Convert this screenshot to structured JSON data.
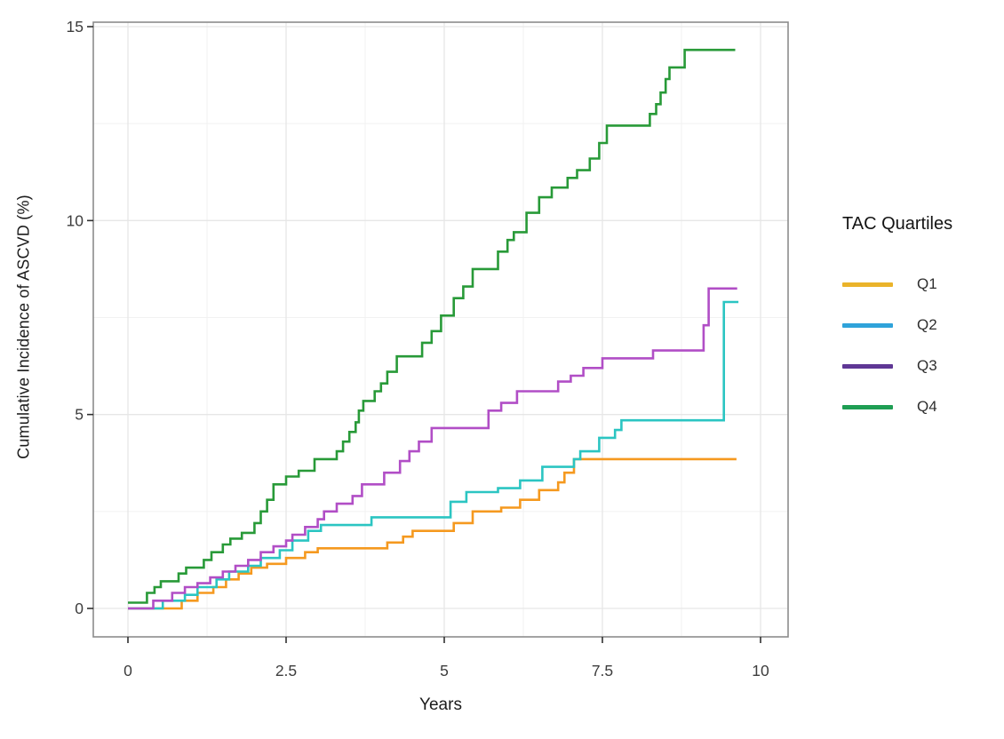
{
  "chart_data": {
    "type": "line",
    "subtype": "step",
    "title": "",
    "xlabel": "Years",
    "ylabel": "Cumulative Incidence of ASCVD (%)",
    "xlim": [
      0,
      10
    ],
    "ylim": [
      0,
      15
    ],
    "x_ticks": [
      0,
      2.5,
      5,
      7.5,
      10
    ],
    "x_tick_labels": [
      "0",
      "2.5",
      "5",
      "7.5",
      "10"
    ],
    "y_ticks": [
      0,
      5,
      10,
      15
    ],
    "y_tick_labels": [
      "0",
      "5",
      "10",
      "15"
    ],
    "x_minor_ticks": [
      1.25,
      3.75,
      6.25,
      8.75
    ],
    "y_minor_ticks": [
      2.5,
      7.5,
      12.5
    ],
    "grid": true,
    "panel_border_color": "#8c8c8c",
    "major_grid_color": "#e6e6e6",
    "minor_grid_color": "#f1f1f1",
    "tick_color": "#2f2f2f",
    "tick_label_color": "#3d3d3d",
    "legend": {
      "title": "TAC Quartiles",
      "position": "right"
    },
    "series": [
      {
        "name": "Q1",
        "color": "#f5991f",
        "legend_color": "#eab32a",
        "points": [
          [
            0,
            0
          ],
          [
            0.85,
            0.2
          ],
          [
            1.1,
            0.4
          ],
          [
            1.35,
            0.55
          ],
          [
            1.55,
            0.75
          ],
          [
            1.75,
            0.9
          ],
          [
            1.95,
            1.05
          ],
          [
            2.2,
            1.15
          ],
          [
            2.5,
            1.3
          ],
          [
            2.8,
            1.45
          ],
          [
            3.0,
            1.55
          ],
          [
            4.1,
            1.7
          ],
          [
            4.35,
            1.85
          ],
          [
            4.5,
            2.0
          ],
          [
            5.15,
            2.2
          ],
          [
            5.45,
            2.5
          ],
          [
            5.9,
            2.6
          ],
          [
            6.2,
            2.8
          ],
          [
            6.5,
            3.05
          ],
          [
            6.8,
            3.25
          ],
          [
            6.9,
            3.5
          ],
          [
            7.05,
            3.85
          ],
          [
            9.62,
            3.85
          ]
        ]
      },
      {
        "name": "Q2",
        "color": "#2bc5c2",
        "legend_color": "#2fa3da",
        "points": [
          [
            0,
            0
          ],
          [
            0.55,
            0.2
          ],
          [
            0.9,
            0.35
          ],
          [
            1.1,
            0.55
          ],
          [
            1.4,
            0.75
          ],
          [
            1.6,
            0.95
          ],
          [
            1.9,
            1.1
          ],
          [
            2.1,
            1.3
          ],
          [
            2.4,
            1.5
          ],
          [
            2.6,
            1.75
          ],
          [
            2.85,
            2.0
          ],
          [
            3.05,
            2.15
          ],
          [
            3.85,
            2.35
          ],
          [
            5.1,
            2.75
          ],
          [
            5.35,
            3.0
          ],
          [
            5.85,
            3.1
          ],
          [
            6.2,
            3.3
          ],
          [
            6.55,
            3.65
          ],
          [
            7.05,
            3.85
          ],
          [
            7.15,
            4.05
          ],
          [
            7.45,
            4.4
          ],
          [
            7.7,
            4.6
          ],
          [
            7.8,
            4.85
          ],
          [
            9.42,
            7.9
          ],
          [
            9.65,
            7.9
          ]
        ]
      },
      {
        "name": "Q3",
        "color": "#b14ec6",
        "legend_color": "#5f3795",
        "points": [
          [
            0,
            0
          ],
          [
            0.4,
            0.2
          ],
          [
            0.7,
            0.4
          ],
          [
            0.9,
            0.55
          ],
          [
            1.1,
            0.65
          ],
          [
            1.3,
            0.8
          ],
          [
            1.5,
            0.95
          ],
          [
            1.7,
            1.1
          ],
          [
            1.9,
            1.25
          ],
          [
            2.1,
            1.45
          ],
          [
            2.3,
            1.6
          ],
          [
            2.5,
            1.75
          ],
          [
            2.6,
            1.9
          ],
          [
            2.8,
            2.1
          ],
          [
            3.0,
            2.3
          ],
          [
            3.1,
            2.5
          ],
          [
            3.3,
            2.7
          ],
          [
            3.55,
            2.9
          ],
          [
            3.7,
            3.2
          ],
          [
            4.05,
            3.5
          ],
          [
            4.3,
            3.8
          ],
          [
            4.45,
            4.05
          ],
          [
            4.6,
            4.3
          ],
          [
            4.8,
            4.65
          ],
          [
            5.7,
            5.1
          ],
          [
            5.9,
            5.3
          ],
          [
            6.15,
            5.6
          ],
          [
            6.8,
            5.85
          ],
          [
            7.0,
            6.0
          ],
          [
            7.2,
            6.2
          ],
          [
            7.5,
            6.45
          ],
          [
            8.3,
            6.65
          ],
          [
            9.1,
            7.3
          ],
          [
            9.18,
            8.25
          ],
          [
            9.63,
            8.25
          ]
        ]
      },
      {
        "name": "Q4",
        "color": "#289a38",
        "legend_color": "#1f9e54",
        "points": [
          [
            0,
            0.15
          ],
          [
            0.3,
            0.4
          ],
          [
            0.42,
            0.55
          ],
          [
            0.52,
            0.7
          ],
          [
            0.8,
            0.9
          ],
          [
            0.92,
            1.05
          ],
          [
            1.2,
            1.25
          ],
          [
            1.32,
            1.45
          ],
          [
            1.5,
            1.65
          ],
          [
            1.62,
            1.8
          ],
          [
            1.8,
            1.95
          ],
          [
            2.0,
            2.2
          ],
          [
            2.1,
            2.5
          ],
          [
            2.2,
            2.8
          ],
          [
            2.3,
            3.2
          ],
          [
            2.5,
            3.4
          ],
          [
            2.7,
            3.55
          ],
          [
            2.95,
            3.85
          ],
          [
            3.3,
            4.05
          ],
          [
            3.4,
            4.3
          ],
          [
            3.5,
            4.55
          ],
          [
            3.6,
            4.8
          ],
          [
            3.65,
            5.1
          ],
          [
            3.72,
            5.35
          ],
          [
            3.9,
            5.6
          ],
          [
            4.0,
            5.8
          ],
          [
            4.1,
            6.1
          ],
          [
            4.25,
            6.5
          ],
          [
            4.65,
            6.85
          ],
          [
            4.8,
            7.15
          ],
          [
            4.95,
            7.55
          ],
          [
            5.15,
            8.0
          ],
          [
            5.3,
            8.3
          ],
          [
            5.45,
            8.75
          ],
          [
            5.85,
            9.2
          ],
          [
            6.0,
            9.5
          ],
          [
            6.1,
            9.7
          ],
          [
            6.3,
            10.2
          ],
          [
            6.5,
            10.6
          ],
          [
            6.7,
            10.85
          ],
          [
            6.95,
            11.1
          ],
          [
            7.1,
            11.3
          ],
          [
            7.3,
            11.6
          ],
          [
            7.45,
            12.0
          ],
          [
            7.57,
            12.45
          ],
          [
            8.25,
            12.75
          ],
          [
            8.35,
            13.0
          ],
          [
            8.42,
            13.3
          ],
          [
            8.5,
            13.65
          ],
          [
            8.56,
            13.95
          ],
          [
            8.8,
            14.4
          ],
          [
            9.6,
            14.4
          ]
        ]
      }
    ]
  }
}
